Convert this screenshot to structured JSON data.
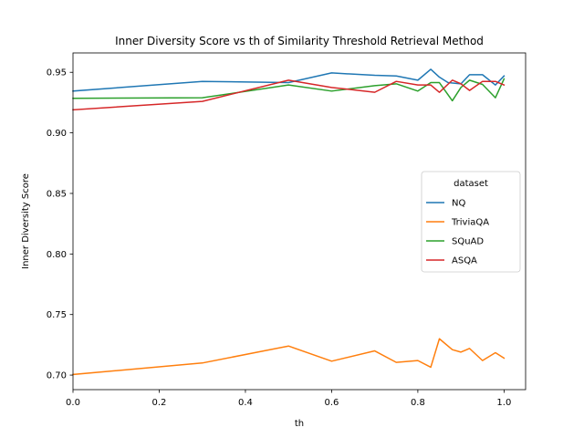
{
  "chart_data": {
    "type": "line",
    "title": "Inner Diversity Score vs th of Similarity Threshold Retrieval Method",
    "xlabel": "th",
    "ylabel": "Inner Diversity Score",
    "xlim": [
      0.0,
      1.05
    ],
    "ylim": [
      0.688,
      0.966
    ],
    "xticks": [
      0.0,
      0.2,
      0.4,
      0.6,
      0.8,
      1.0
    ],
    "xtick_labels": [
      "0.0",
      "0.2",
      "0.4",
      "0.6",
      "0.8",
      "1.0"
    ],
    "yticks": [
      0.7,
      0.75,
      0.8,
      0.85,
      0.9,
      0.95
    ],
    "ytick_labels": [
      "0.70",
      "0.75",
      "0.80",
      "0.85",
      "0.90",
      "0.95"
    ],
    "grid": false,
    "legend": {
      "title": "dataset",
      "position": "center-right"
    },
    "series": [
      {
        "name": "NQ",
        "color": "#1f77b4",
        "points": [
          [
            0.0,
            0.9345
          ],
          [
            0.3,
            0.9425
          ],
          [
            0.5,
            0.9415
          ],
          [
            0.6,
            0.9495
          ],
          [
            0.7,
            0.9475
          ],
          [
            0.75,
            0.947
          ],
          [
            0.8,
            0.9435
          ],
          [
            0.83,
            0.9525
          ],
          [
            0.85,
            0.946
          ],
          [
            0.87,
            0.9415
          ],
          [
            0.9,
            0.9405
          ],
          [
            0.92,
            0.948
          ],
          [
            0.95,
            0.948
          ],
          [
            0.98,
            0.9395
          ],
          [
            1.0,
            0.947
          ]
        ]
      },
      {
        "name": "TriviaQA",
        "color": "#ff7f0e",
        "points": [
          [
            0.0,
            0.7005
          ],
          [
            0.3,
            0.71
          ],
          [
            0.5,
            0.724
          ],
          [
            0.6,
            0.7115
          ],
          [
            0.7,
            0.72
          ],
          [
            0.75,
            0.7105
          ],
          [
            0.8,
            0.712
          ],
          [
            0.83,
            0.7065
          ],
          [
            0.85,
            0.73
          ],
          [
            0.88,
            0.721
          ],
          [
            0.9,
            0.719
          ],
          [
            0.92,
            0.722
          ],
          [
            0.95,
            0.712
          ],
          [
            0.98,
            0.7185
          ],
          [
            1.0,
            0.714
          ]
        ]
      },
      {
        "name": "SQuAD",
        "color": "#2ca02c",
        "points": [
          [
            0.0,
            0.9285
          ],
          [
            0.3,
            0.929
          ],
          [
            0.5,
            0.9395
          ],
          [
            0.6,
            0.9345
          ],
          [
            0.7,
            0.939
          ],
          [
            0.75,
            0.9405
          ],
          [
            0.8,
            0.9345
          ],
          [
            0.83,
            0.9415
          ],
          [
            0.85,
            0.9415
          ],
          [
            0.88,
            0.9265
          ],
          [
            0.9,
            0.9375
          ],
          [
            0.92,
            0.9435
          ],
          [
            0.95,
            0.94
          ],
          [
            0.98,
            0.929
          ],
          [
            1.0,
            0.9445
          ]
        ]
      },
      {
        "name": "ASQA",
        "color": "#d62728",
        "points": [
          [
            0.0,
            0.919
          ],
          [
            0.3,
            0.926
          ],
          [
            0.5,
            0.9435
          ],
          [
            0.6,
            0.9375
          ],
          [
            0.7,
            0.9335
          ],
          [
            0.75,
            0.9425
          ],
          [
            0.8,
            0.9395
          ],
          [
            0.83,
            0.9395
          ],
          [
            0.85,
            0.9335
          ],
          [
            0.88,
            0.9435
          ],
          [
            0.9,
            0.9405
          ],
          [
            0.92,
            0.935
          ],
          [
            0.95,
            0.9425
          ],
          [
            0.98,
            0.9425
          ],
          [
            1.0,
            0.9395
          ]
        ]
      }
    ]
  }
}
